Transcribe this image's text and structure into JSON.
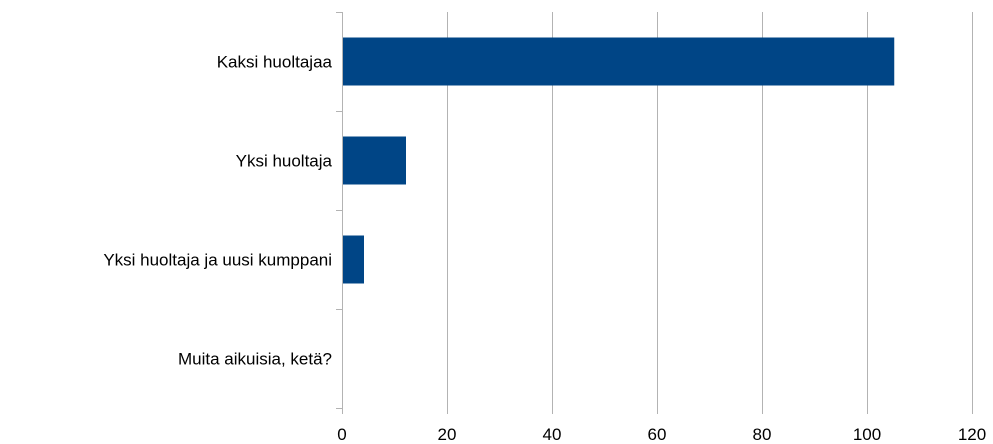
{
  "chart_data": {
    "type": "bar",
    "orientation": "horizontal",
    "title": "",
    "xlabel": "",
    "ylabel": "",
    "categories": [
      "Kaksi huoltajaa",
      "Yksi huoltaja",
      "Yksi huoltaja ja uusi kumppani",
      "Muita aikuisia, ketä?"
    ],
    "values": [
      105,
      12,
      4,
      0
    ],
    "xlim": [
      0,
      120
    ],
    "xticks": [
      0,
      20,
      40,
      60,
      80,
      100,
      120
    ],
    "grid": true,
    "legend": "none",
    "bar_color": "#004586",
    "grid_color": "#b3b3b3"
  }
}
